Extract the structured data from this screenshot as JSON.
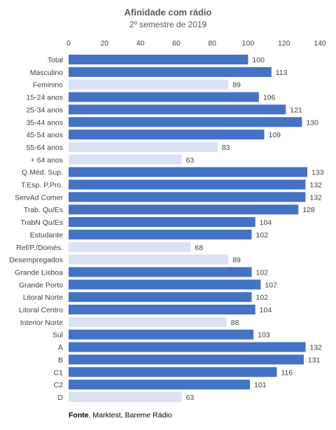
{
  "chart_data": {
    "type": "bar",
    "orientation": "horizontal",
    "title": "Afinidade com rádio",
    "subtitle": "2º semestre de 2019",
    "xlim": [
      0,
      140
    ],
    "x_ticks": [
      "0",
      "20",
      "40",
      "60",
      "80",
      "100",
      "120",
      "140"
    ],
    "x_axis_position": "top",
    "grid": false,
    "categories": [
      "Total",
      "Masculino",
      "Feminino",
      "15-24 anos",
      "25-34 anos",
      "35-44 anos",
      "45-54 anos",
      "55-64 anos",
      "+ 64  anos",
      "Q.Méd. Sup.",
      "T.Esp. P.Pro.",
      "ServAd Comer",
      "Trab. Qu/Es",
      "TrabN Qu/Es",
      "Estudante",
      "Ref/P./Domés.",
      "Desempregados",
      "Grande Lisboa",
      "Grande Porto",
      "Litoral Norte",
      "Litoral Centro",
      "Interior Norte",
      "Sul",
      "A",
      "B",
      "C1",
      "C2",
      "D"
    ],
    "values": [
      100,
      113,
      89,
      106,
      121,
      130,
      109,
      83,
      63,
      133,
      132,
      132,
      128,
      104,
      102,
      68,
      89,
      102,
      107,
      102,
      104,
      88,
      103,
      132,
      131,
      116,
      101,
      63
    ],
    "value_labels": [
      "100",
      "113",
      "89",
      "106",
      "121",
      "130",
      "109",
      "83",
      "63",
      "133",
      "132",
      "132",
      "128",
      "104",
      "102",
      "68",
      "89",
      "102",
      "107",
      "102",
      "104",
      "88",
      "103",
      "132",
      "131",
      "116",
      "101",
      "63"
    ],
    "colors": {
      "above_100": "#4472c4",
      "below_100": "#d9e1f5"
    },
    "source_label": "Fonte",
    "source_text": ", Marktest, Bareme Rádio"
  }
}
